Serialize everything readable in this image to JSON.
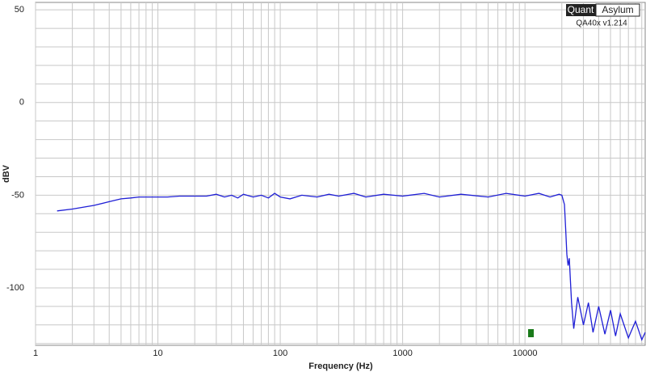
{
  "chart_data": {
    "type": "line",
    "xlabel": "Frequency (Hz)",
    "ylabel": "dBV",
    "brand": {
      "left": "Quant",
      "right": "Asylum"
    },
    "version": "QA40x v1.214",
    "x": [
      1.5,
      2,
      3,
      4,
      5,
      6,
      7,
      8,
      10,
      12,
      15,
      20,
      25,
      30,
      35,
      40,
      45,
      50,
      60,
      70,
      80,
      90,
      100,
      120,
      150,
      200,
      250,
      300,
      400,
      500,
      700,
      1000,
      1500,
      2000,
      3000,
      5000,
      7000,
      10000,
      13000,
      16000,
      19000,
      20000,
      21000,
      21500,
      22000,
      22500,
      23000,
      24000,
      25000,
      27000,
      30000,
      33000,
      36000,
      40000,
      45000,
      50000,
      55000,
      60000,
      70000,
      80000,
      90000,
      96000
    ],
    "series": [
      {
        "name": "dBV",
        "color": "#1f1fd6",
        "values": [
          -58.5,
          -57.5,
          -55.5,
          -53.5,
          -52,
          -51.5,
          -51,
          -51,
          -51,
          -51,
          -50.5,
          -50.5,
          -50.5,
          -49.5,
          -51,
          -50,
          -51.5,
          -49.5,
          -51,
          -50,
          -51.5,
          -49,
          -51,
          -52,
          -50,
          -51,
          -49.5,
          -50.5,
          -49,
          -51,
          -49.5,
          -50.5,
          -49,
          -51,
          -49.5,
          -51,
          -49,
          -50.5,
          -49,
          -51,
          -49.5,
          -50,
          -55,
          -68,
          -82,
          -88,
          -84,
          -108,
          -122,
          -105,
          -120,
          -108,
          -124,
          -110,
          -125,
          -112,
          -126,
          -114,
          -127,
          -118,
          -128,
          -124
        ]
      }
    ],
    "log_x": true,
    "xlim": [
      1,
      96000
    ],
    "ylim": [
      -131,
      54
    ],
    "xticks": [
      1,
      10,
      100,
      1000,
      10000
    ],
    "x_minor_ticks": [
      2,
      3,
      4,
      5,
      6,
      7,
      8,
      9,
      20,
      30,
      40,
      50,
      60,
      70,
      80,
      90,
      200,
      300,
      400,
      500,
      600,
      700,
      800,
      900,
      2000,
      3000,
      4000,
      5000,
      6000,
      7000,
      8000,
      9000,
      20000,
      30000,
      40000,
      50000,
      60000,
      70000,
      80000,
      90000
    ],
    "yticks": [
      -100,
      -50,
      0,
      50
    ],
    "y_minor_ticks": [
      -130,
      -120,
      -110,
      -90,
      -80,
      -70,
      -60,
      -40,
      -30,
      -20,
      -10,
      10,
      20,
      30,
      40
    ],
    "grid": true
  }
}
